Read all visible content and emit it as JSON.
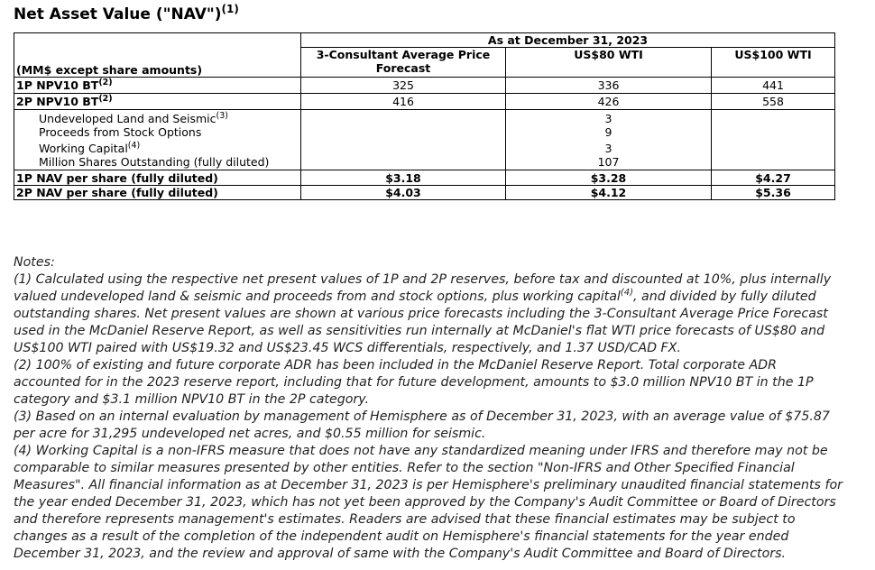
{
  "title": {
    "text": "Net Asset Value (\"NAV\")",
    "sup": "(1)"
  },
  "table": {
    "group_header": "As at December 31, 2023",
    "unit_header": "(MM$ except share amounts)",
    "col_headers": [
      "3-Consultant Average Price Forecast",
      "US$80 WTI",
      "US$100 WTI"
    ],
    "rows": {
      "npv_1p": {
        "label": "1P NPV10 BT",
        "sup": "(2)",
        "values": [
          "325",
          "336",
          "441"
        ]
      },
      "npv_2p": {
        "label": "2P NPV10 BT",
        "sup": "(2)",
        "values": [
          "416",
          "426",
          "558"
        ]
      },
      "land": {
        "label": "Undeveloped Land and Seismic",
        "sup": "(3)",
        "value": "3"
      },
      "options": {
        "label": "Proceeds from Stock Options",
        "value": "9"
      },
      "wc": {
        "label": "Working Capital",
        "sup": "(4)",
        "value": "3"
      },
      "shares": {
        "label": "Million Shares Outstanding (fully diluted)",
        "value": "107"
      },
      "nav_1p": {
        "label": "1P NAV per share (fully diluted)",
        "values": [
          "$3.18",
          "$3.28",
          "$4.27"
        ]
      },
      "nav_2p": {
        "label": "2P NAV per share (fully diluted)",
        "values": [
          "$4.03",
          "$4.12",
          "$5.36"
        ]
      }
    }
  },
  "notes": {
    "heading": "Notes:",
    "n1_a": "(1) Calculated using the respective net present values of 1P and 2P reserves, before tax and discounted at 10%, plus internally valued undeveloped land & seismic and proceeds from and stock options, plus working capital",
    "n1_sup": "(4)",
    "n1_b": ", and divided by fully diluted outstanding shares. Net present values are shown at various price forecasts including the 3-Consultant Average Price Forecast used in the McDaniel Reserve Report, as well as sensitivities run internally at McDaniel's flat WTI price forecasts of US$80 and US$100 WTI paired with US$19.32 and US$23.45 WCS differentials, respectively, and 1.37 USD/CAD FX.",
    "n2": "(2) 100% of existing and future corporate ADR has been included in the McDaniel Reserve Report. Total corporate ADR accounted for in the 2023 reserve report, including that for future development, amounts to $3.0 million NPV10 BT in the 1P category and $3.1 million NPV10 BT in the 2P category.",
    "n3": "(3) Based on an internal evaluation by management of Hemisphere as of December 31, 2023, with an average value of $75.87 per acre for 31,295 undeveloped net acres, and $0.55 million for seismic.",
    "n4": "(4) Working Capital is a non-IFRS measure that does not have any standardized meaning under IFRS and therefore may not be comparable to similar measures presented by other entities. Refer to the section \"Non-IFRS and Other Specified Financial Measures\". All financial information as at December 31, 2023 is per Hemisphere's preliminary unaudited financial statements for the year ended December 31, 2023, which has not yet been approved by the Company's Audit Committee or Board of Directors and therefore represents management's estimates. Readers are advised that these financial estimates may be subject to changes as a result of the completion of the independent audit on Hemisphere's financial statements for the year ended December 31, 2023, and the review and approval of same with the Company's Audit Committee and Board of Directors."
  }
}
